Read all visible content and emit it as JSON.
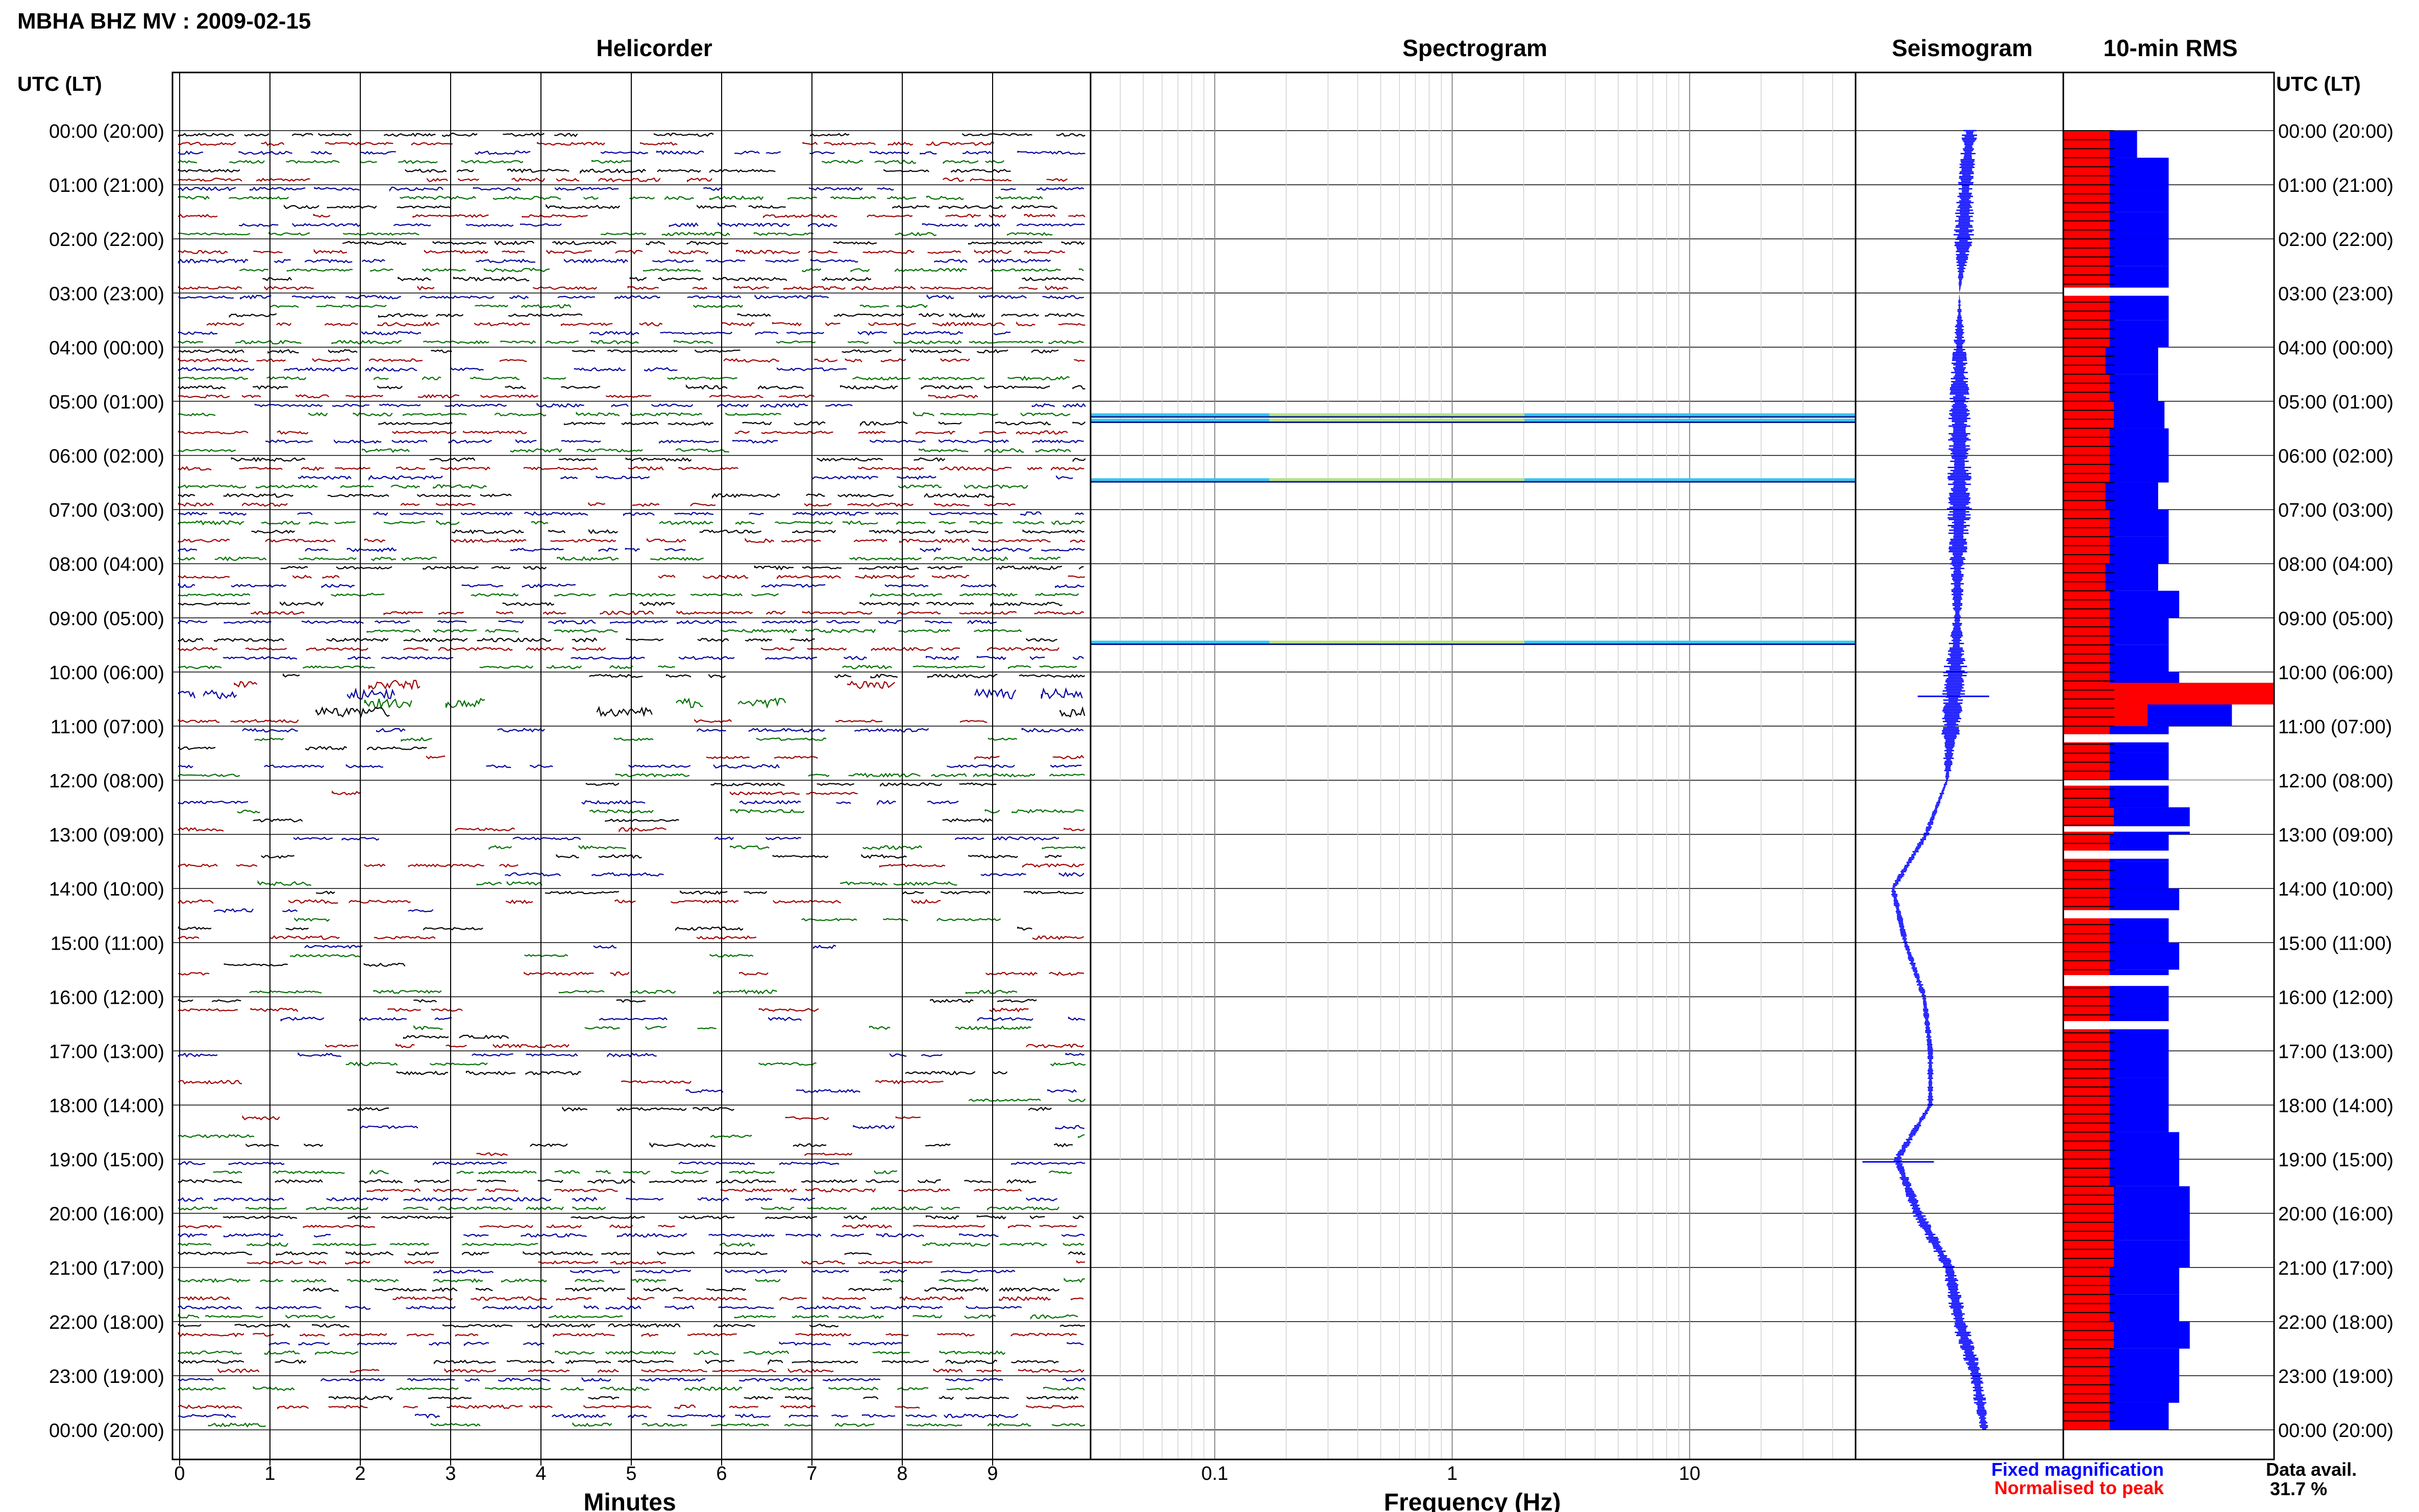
{
  "title": "MBHA BHZ MV : 2009-02-15",
  "panels": {
    "helicorder": "Helicorder",
    "spectrogram": "Spectrogram",
    "seismogram": "Seismogram",
    "rms": "10-min RMS"
  },
  "utc_header_left": "UTC (LT)",
  "utc_header_right": "UTC (LT)",
  "time_labels": [
    "00:00 (20:00)",
    "01:00 (21:00)",
    "02:00 (22:00)",
    "03:00 (23:00)",
    "04:00 (00:00)",
    "05:00 (01:00)",
    "06:00 (02:00)",
    "07:00 (03:00)",
    "08:00 (04:00)",
    "09:00 (05:00)",
    "10:00 (06:00)",
    "11:00 (07:00)",
    "12:00 (08:00)",
    "13:00 (09:00)",
    "14:00 (10:00)",
    "15:00 (11:00)",
    "16:00 (12:00)",
    "17:00 (13:00)",
    "18:00 (14:00)",
    "19:00 (15:00)",
    "20:00 (16:00)",
    "21:00 (17:00)",
    "22:00 (18:00)",
    "23:00 (19:00)",
    "00:00 (20:00)"
  ],
  "minute_ticks": [
    "0",
    "1",
    "2",
    "3",
    "4",
    "5",
    "6",
    "7",
    "8",
    "9"
  ],
  "minutes_label": "Minutes",
  "frequency_ticks": [
    "0.1",
    "1",
    "10"
  ],
  "frequency_label": "Frequency (Hz)",
  "legend": {
    "fixed": "Fixed magnification",
    "normalised": "Normalised to peak",
    "fixed_color": "#0000ff",
    "normalised_color": "#ff0000"
  },
  "data_avail_label": "Data avail.",
  "data_avail_value": "31.7 %",
  "colors": {
    "trace_black": "#000000",
    "trace_red": "#a00000",
    "trace_blue": "#0000a0",
    "trace_green": "#007000",
    "rms_blue": "#0000ff",
    "rms_red": "#ff0000"
  },
  "chart_data": [
    {
      "type": "line",
      "name": "helicorder",
      "x_axis": "minutes",
      "x": [
        0,
        1,
        2,
        3,
        4,
        5,
        6,
        7,
        8,
        9
      ],
      "xlim": [
        0,
        10
      ],
      "ylim_hours_utc": [
        0,
        24
      ],
      "rows_per_hour": 6,
      "row_colors": [
        "#000000",
        "#a00000",
        "#0000a0",
        "#007000"
      ],
      "notable_events_hours_utc": [
        5.3,
        10.3,
        10.6,
        19.0
      ]
    },
    {
      "type": "heatmap",
      "name": "spectrogram",
      "x_axis": "frequency (Hz)",
      "x_scale": "log",
      "xlim": [
        0.03,
        50
      ],
      "x_ticks": [
        0.1,
        1,
        10
      ],
      "bands_hours_utc": [
        5.25,
        5.35,
        6.45,
        9.45
      ]
    },
    {
      "type": "line",
      "name": "seismogram",
      "offset_hours_utc": [
        0,
        1,
        2,
        3,
        4,
        5,
        6,
        7,
        8,
        9,
        10,
        11,
        12,
        13,
        14,
        15,
        16,
        17,
        18,
        19,
        20,
        21,
        22,
        23,
        24
      ],
      "offset_values": [
        0.55,
        0.53,
        0.52,
        0.5,
        0.5,
        0.5,
        0.5,
        0.5,
        0.49,
        0.49,
        0.48,
        0.46,
        0.44,
        0.34,
        0.18,
        0.24,
        0.33,
        0.36,
        0.36,
        0.2,
        0.3,
        0.45,
        0.5,
        0.58,
        0.62
      ],
      "amplitude_hours_utc": [
        0,
        1,
        2,
        3,
        4,
        5,
        6,
        7,
        8,
        9,
        10,
        11,
        12,
        13,
        14,
        15,
        16,
        17,
        18,
        19,
        20,
        21,
        22,
        23,
        24
      ],
      "amplitude_values": [
        0.08,
        0.08,
        0.1,
        0,
        0.07,
        0.1,
        0.12,
        0.12,
        0.08,
        0.04,
        0.12,
        0.1,
        0.02,
        0.03,
        0.03,
        0.03,
        0.03,
        0.03,
        0.03,
        0.04,
        0.06,
        0.06,
        0.08,
        0.07,
        0.05
      ],
      "spikes_hours_utc": [
        10.45,
        19.05
      ]
    },
    {
      "type": "bar",
      "name": "10-min RMS",
      "hours_utc": [
        0,
        0.5,
        1,
        1.5,
        2,
        2.5,
        3,
        3.5,
        4,
        4.5,
        5,
        5.5,
        6,
        6.5,
        7,
        7.5,
        8,
        8.5,
        9,
        9.5,
        10,
        10.2,
        10.4,
        10.6,
        11,
        11.5,
        12,
        12.5,
        13,
        13.5,
        14,
        14.5,
        15,
        15.5,
        16,
        16.5,
        17,
        17.5,
        18,
        18.5,
        19,
        19.5,
        20,
        20.5,
        21,
        21.5,
        22,
        22.5,
        23,
        23.5
      ],
      "fixed_magnification": [
        0.35,
        0.5,
        0.5,
        0.5,
        0.5,
        0.5,
        0.5,
        0.5,
        0.45,
        0.45,
        0.48,
        0.5,
        0.5,
        0.45,
        0.5,
        0.5,
        0.45,
        0.55,
        0.5,
        0.5,
        0.55,
        1.0,
        1.0,
        0.8,
        0.5,
        0.5,
        0.5,
        0.6,
        0.5,
        0.5,
        0.55,
        0.5,
        0.55,
        0.5,
        0.5,
        0.5,
        0.5,
        0.5,
        0.5,
        0.55,
        0.55,
        0.6,
        0.6,
        0.6,
        0.55,
        0.55,
        0.6,
        0.55,
        0.55,
        0.5
      ],
      "normalised_to_peak": [
        0.22,
        0.22,
        0.22,
        0.22,
        0.22,
        0.22,
        0.22,
        0.22,
        0.2,
        0.22,
        0.24,
        0.22,
        0.22,
        0.2,
        0.22,
        0.22,
        0.2,
        0.22,
        0.22,
        0.22,
        0.22,
        1.0,
        1.0,
        0.4,
        0.22,
        0.22,
        0.22,
        0.24,
        0.22,
        0.22,
        0.22,
        0.22,
        0.22,
        0.22,
        0.22,
        0.22,
        0.22,
        0.22,
        0.22,
        0.22,
        0.22,
        0.24,
        0.24,
        0.24,
        0.22,
        0.22,
        0.24,
        0.22,
        0.22,
        0.22
      ],
      "gaps_hours_utc": [
        [
          2.9,
          3.05
        ],
        [
          11.15,
          11.3
        ],
        [
          12.0,
          12.1
        ],
        [
          12.85,
          12.95
        ],
        [
          13.3,
          13.45
        ],
        [
          14.4,
          14.55
        ],
        [
          15.6,
          15.8
        ],
        [
          16.45,
          16.6
        ]
      ]
    }
  ]
}
